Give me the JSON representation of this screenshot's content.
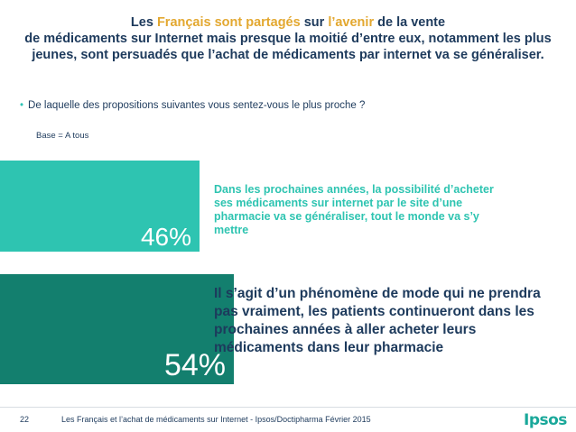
{
  "title": {
    "line1_part1": "Les ",
    "line1_highlight1": "Français sont partagés",
    "line1_part2": " sur ",
    "line1_highlight2": "l’avenir",
    "line1_part3": " de la vente",
    "line2": "de médicaments sur Internet mais presque la moitié d’entre eux, notamment les plus",
    "line3": "jeunes, sont persuadés que l’achat de médicaments par internet va se généraliser."
  },
  "question": {
    "bullet": "•",
    "text": "De laquelle des propositions suivantes vous sentez-vous le plus proche ?"
  },
  "base": "Base = A tous",
  "chart_data": {
    "type": "bar",
    "orientation": "horizontal",
    "categories": [
      "Dans les prochaines années, la possibilité d’acheter ses médicaments sur internet par le site d’une pharmacie va se généraliser, tout le monde va s’y mettre",
      "Il s’agit d’un phénomène de mode qui ne prendra pas vraiment, les patients continueront dans les prochaines années à aller acheter leurs médicaments dans leur pharmacie"
    ],
    "values": [
      46,
      54
    ],
    "value_labels": [
      "46%",
      "54%"
    ],
    "colors": [
      "#2ec4b1",
      "#137f6e"
    ],
    "xlim": [
      0,
      100
    ],
    "title": "",
    "xlabel": "",
    "ylabel": "",
    "grid": false
  },
  "footer": {
    "page_number": "22",
    "source": "Les Français et l’achat de médicaments sur Internet - Ipsos/Doctipharma Février 2015",
    "logo": "Ipsos"
  },
  "colors": {
    "navy": "#1d3a5c",
    "accent_orange": "#e3a830",
    "teal_light": "#2ec4b1",
    "teal_dark": "#137f6e"
  }
}
